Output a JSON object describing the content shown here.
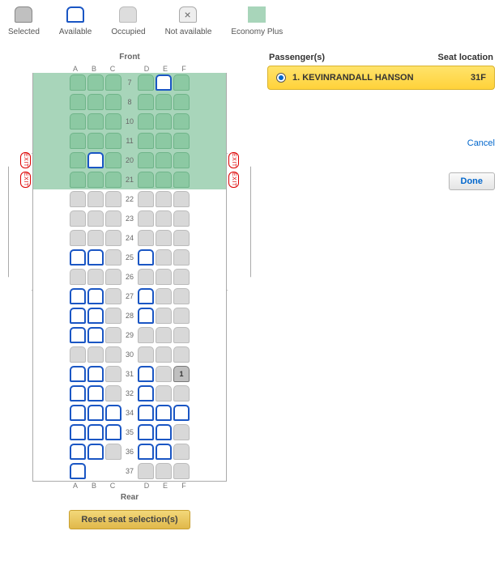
{
  "legend": {
    "selected": "Selected",
    "available": "Available",
    "occupied": "Occupied",
    "not_available": "Not available",
    "economy_plus": "Economy Plus",
    "eplus_color": "#a8d5ba"
  },
  "plane": {
    "front": "Front",
    "rear": "Rear",
    "columns": [
      "A",
      "B",
      "C",
      "D",
      "E",
      "F"
    ],
    "rows": [
      {
        "n": "7",
        "eplus": true,
        "seats": [
          "epo",
          "epo",
          "epo",
          "epo",
          "ava",
          "epo"
        ]
      },
      {
        "n": "8",
        "eplus": true,
        "seats": [
          "epo",
          "epo",
          "epo",
          "epo",
          "epo",
          "epo"
        ]
      },
      {
        "n": "10",
        "eplus": true,
        "seats": [
          "epo",
          "epo",
          "epo",
          "epo",
          "epo",
          "epo"
        ]
      },
      {
        "n": "11",
        "eplus": true,
        "seats": [
          "epo",
          "epo",
          "epo",
          "epo",
          "epo",
          "epo"
        ]
      },
      {
        "n": "20",
        "eplus": true,
        "seats": [
          "epo",
          "ava",
          "epo",
          "epo",
          "epo",
          "epo"
        ],
        "exit": true
      },
      {
        "n": "21",
        "eplus": true,
        "seats": [
          "epo",
          "epo",
          "epo",
          "epo",
          "epo",
          "epo"
        ],
        "exit": true
      },
      {
        "n": "22",
        "seats": [
          "occ",
          "occ",
          "occ",
          "occ",
          "occ",
          "occ"
        ]
      },
      {
        "n": "23",
        "seats": [
          "occ",
          "occ",
          "occ",
          "occ",
          "occ",
          "occ"
        ]
      },
      {
        "n": "24",
        "seats": [
          "occ",
          "occ",
          "occ",
          "occ",
          "occ",
          "occ"
        ]
      },
      {
        "n": "25",
        "seats": [
          "ava",
          "ava",
          "occ",
          "ava",
          "occ",
          "occ"
        ]
      },
      {
        "n": "26",
        "seats": [
          "occ",
          "occ",
          "occ",
          "occ",
          "occ",
          "occ"
        ]
      },
      {
        "n": "27",
        "seats": [
          "ava",
          "ava",
          "occ",
          "ava",
          "occ",
          "occ"
        ]
      },
      {
        "n": "28",
        "seats": [
          "ava",
          "ava",
          "occ",
          "ava",
          "occ",
          "occ"
        ]
      },
      {
        "n": "29",
        "seats": [
          "ava",
          "ava",
          "occ",
          "occ",
          "occ",
          "occ"
        ]
      },
      {
        "n": "30",
        "seats": [
          "occ",
          "occ",
          "occ",
          "occ",
          "occ",
          "occ"
        ]
      },
      {
        "n": "31",
        "seats": [
          "ava",
          "ava",
          "occ",
          "ava",
          "occ",
          "sel"
        ],
        "selected_label": "1"
      },
      {
        "n": "32",
        "seats": [
          "ava",
          "ava",
          "occ",
          "ava",
          "occ",
          "occ"
        ]
      },
      {
        "n": "34",
        "seats": [
          "ava",
          "ava",
          "ava",
          "ava",
          "ava",
          "ava"
        ]
      },
      {
        "n": "35",
        "seats": [
          "ava",
          "ava",
          "ava",
          "ava",
          "ava",
          "occ"
        ]
      },
      {
        "n": "36",
        "seats": [
          "ava",
          "ava",
          "occ",
          "ava",
          "ava",
          "occ"
        ]
      },
      {
        "n": "37",
        "seats": [
          "ava",
          "blk",
          "blk",
          "occ",
          "occ",
          "occ"
        ]
      }
    ],
    "exit_label": "EXIT"
  },
  "side": {
    "header_pax": "Passenger(s)",
    "header_seat": "Seat location",
    "pax_name": "1. KEVINRANDALL HANSON",
    "pax_seat": "31F",
    "cancel": "Cancel",
    "done": "Done"
  },
  "reset": "Reset seat selection(s)"
}
